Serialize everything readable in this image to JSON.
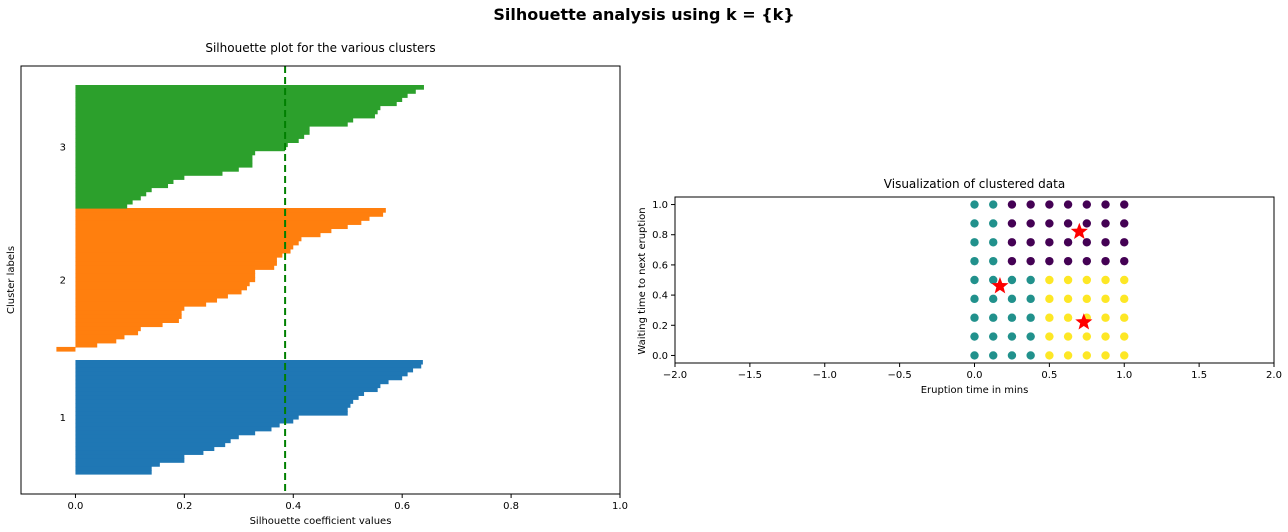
{
  "figure": {
    "suptitle": "Silhouette analysis using k = {k}"
  },
  "chart_data": [
    {
      "type": "bar",
      "orientation": "horizontal",
      "title": "Silhouette plot for the various clusters",
      "xlabel": "Silhouette coefficient values",
      "ylabel": "Cluster labels",
      "xlim": [
        -0.1,
        1.0
      ],
      "xticks": [
        "0.0",
        "0.2",
        "0.4",
        "0.6",
        "0.8",
        "1.0"
      ],
      "xtick_values": [
        0.0,
        0.2,
        0.4,
        0.6,
        0.8,
        1.0
      ],
      "cluster_labels": [
        "1",
        "2",
        "3"
      ],
      "average_silhouette": 0.385,
      "average_line_color": "#008000",
      "clusters": [
        {
          "label": "1",
          "color": "#1f77b4",
          "values": [
            0.638,
            0.635,
            0.62,
            0.61,
            0.6,
            0.575,
            0.56,
            0.555,
            0.53,
            0.52,
            0.51,
            0.505,
            0.5,
            0.5,
            0.41,
            0.4,
            0.375,
            0.36,
            0.33,
            0.3,
            0.285,
            0.275,
            0.255,
            0.235,
            0.2,
            0.2,
            0.155,
            0.14,
            0.14
          ]
        },
        {
          "label": "2",
          "color": "#ff7f0e",
          "values": [
            0.57,
            0.565,
            0.54,
            0.525,
            0.5,
            0.47,
            0.45,
            0.415,
            0.41,
            0.4,
            0.395,
            0.38,
            0.37,
            0.37,
            0.365,
            0.33,
            0.33,
            0.33,
            0.32,
            0.315,
            0.305,
            0.28,
            0.26,
            0.24,
            0.2,
            0.195,
            0.195,
            0.19,
            0.16,
            0.12,
            0.115,
            0.09,
            0.075,
            0.04,
            -0.035
          ]
        },
        {
          "label": "3",
          "color": "#2ca02c",
          "values": [
            0.64,
            0.625,
            0.61,
            0.6,
            0.59,
            0.56,
            0.555,
            0.55,
            0.51,
            0.5,
            0.43,
            0.43,
            0.42,
            0.41,
            0.39,
            0.385,
            0.33,
            0.325,
            0.325,
            0.325,
            0.3,
            0.27,
            0.2,
            0.18,
            0.17,
            0.14,
            0.13,
            0.12,
            0.105,
            0.095
          ]
        }
      ]
    },
    {
      "type": "scatter",
      "title": "Visualization of clustered data",
      "xlabel": "Eruption time in mins",
      "ylabel": "Waiting time to next eruption",
      "xlim": [
        -2.0,
        2.0
      ],
      "ylim": [
        -0.05,
        1.05
      ],
      "xticks": [
        "−2.0",
        "−1.5",
        "−1.0",
        "−0.5",
        "0.0",
        "0.5",
        "1.0",
        "1.5",
        "2.0"
      ],
      "xtick_values": [
        -2.0,
        -1.5,
        -1.0,
        -0.5,
        0.0,
        0.5,
        1.0,
        1.5,
        2.0
      ],
      "yticks": [
        "0.0",
        "0.2",
        "0.4",
        "0.6",
        "0.8",
        "1.0"
      ],
      "ytick_values": [
        0.0,
        0.2,
        0.4,
        0.6,
        0.8,
        1.0
      ],
      "grid_x": [
        0.0,
        0.125,
        0.25,
        0.375,
        0.5,
        0.625,
        0.75,
        0.875,
        1.0
      ],
      "grid_y": [
        0.0,
        0.125,
        0.25,
        0.375,
        0.5,
        0.625,
        0.75,
        0.875,
        1.0
      ],
      "cluster_colors": {
        "teal": "#21918c",
        "purple": "#440154",
        "yellow": "#fde725"
      },
      "centers": [
        {
          "x": 0.7,
          "y": 0.82
        },
        {
          "x": 0.17,
          "y": 0.46
        },
        {
          "x": 0.73,
          "y": 0.22
        }
      ],
      "center_color": "#ff0000"
    }
  ]
}
